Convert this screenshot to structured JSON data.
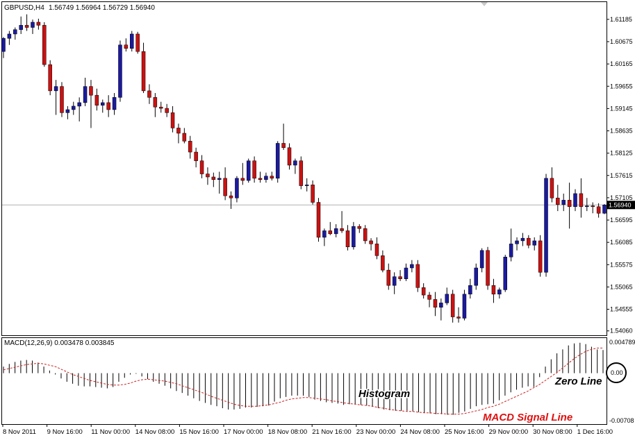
{
  "header": {
    "symbol": "GBPUSD,H4",
    "ohlc": "1.56749 1.56964 1.56729 1.56940"
  },
  "colors": {
    "bull": "#1a1aa0",
    "bear": "#cc1111",
    "wick": "#000000",
    "macd_bar": "#000000",
    "signal": "#cc2222",
    "annotation_red": "#e01010"
  },
  "macd": {
    "title": "MACD(12,26,9) 0.003478 0.003845",
    "ticks": [
      "0.004789",
      "0.00",
      "-0.00708"
    ],
    "annotations": {
      "zero_line": "Zero Line",
      "histogram": "Histogram",
      "signal_line": "MACD Signal Line"
    }
  },
  "chart_data": [
    {
      "type": "candlestick",
      "title": "GBPUSD,H4  1.56749 1.56964 1.56729 1.56940",
      "y_ticks": [
        "1.61185",
        "1.60675",
        "1.60165",
        "1.59655",
        "1.59145",
        "1.58635",
        "1.58125",
        "1.57615",
        "1.57105",
        "1.56595",
        "1.56085",
        "1.55575",
        "1.55065",
        "1.54555",
        "1.54060"
      ],
      "ylim": [
        1.5396,
        1.6158
      ],
      "current_price": "1.56940",
      "x_labels": [
        "8 Nov 2011",
        "9 Nov 16:00",
        "11 Nov 00:00",
        "14 Nov 08:00",
        "15 Nov 16:00",
        "17 Nov 00:00",
        "18 Nov 08:00",
        "21 Nov 16:00",
        "23 Nov 00:00",
        "24 Nov 08:00",
        "25 Nov 16:00",
        "29 Nov 00:00",
        "30 Nov 08:00",
        "1 Dec 16:00"
      ],
      "ohlc": [
        [
          1.6045,
          1.6078,
          1.603,
          1.6075
        ],
        [
          1.6075,
          1.6092,
          1.606,
          1.6085
        ],
        [
          1.6085,
          1.61,
          1.6072,
          1.6095
        ],
        [
          1.6095,
          1.6125,
          1.6085,
          1.6105
        ],
        [
          1.6105,
          1.613,
          1.6092,
          1.61
        ],
        [
          1.61,
          1.6118,
          1.6085,
          1.6112
        ],
        [
          1.6112,
          1.612,
          1.6095,
          1.6105
        ],
        [
          1.6105,
          1.6112,
          1.601,
          1.6015
        ],
        [
          1.6015,
          1.6025,
          1.5945,
          1.5955
        ],
        [
          1.5955,
          1.598,
          1.59,
          1.5965
        ],
        [
          1.5965,
          1.5975,
          1.5895,
          1.5905
        ],
        [
          1.5905,
          1.592,
          1.589,
          1.5912
        ],
        [
          1.5912,
          1.593,
          1.59,
          1.592
        ],
        [
          1.592,
          1.594,
          1.5885,
          1.5928
        ],
        [
          1.5928,
          1.5985,
          1.592,
          1.5965
        ],
        [
          1.5965,
          1.598,
          1.587,
          1.5945
        ],
        [
          1.5945,
          1.596,
          1.591,
          1.5922
        ],
        [
          1.5922,
          1.5935,
          1.5905,
          1.5928
        ],
        [
          1.5928,
          1.5945,
          1.5895,
          1.5912
        ],
        [
          1.5912,
          1.595,
          1.59,
          1.594
        ],
        [
          1.594,
          1.607,
          1.593,
          1.606
        ],
        [
          1.606,
          1.6075,
          1.6045,
          1.6052
        ],
        [
          1.6052,
          1.6092,
          1.6045,
          1.6085
        ],
        [
          1.6085,
          1.609,
          1.604,
          1.6045
        ],
        [
          1.6045,
          1.6065,
          1.595,
          1.5955
        ],
        [
          1.5955,
          1.597,
          1.5925,
          1.594
        ],
        [
          1.594,
          1.595,
          1.5895,
          1.5918
        ],
        [
          1.5918,
          1.593,
          1.5905,
          1.5915
        ],
        [
          1.5915,
          1.5925,
          1.5895,
          1.5905
        ],
        [
          1.5905,
          1.592,
          1.586,
          1.587
        ],
        [
          1.587,
          1.588,
          1.5835,
          1.5858
        ],
        [
          1.5858,
          1.587,
          1.5835,
          1.584
        ],
        [
          1.584,
          1.5852,
          1.58,
          1.5815
        ],
        [
          1.5815,
          1.5825,
          1.578,
          1.5795
        ],
        [
          1.5795,
          1.5808,
          1.5755,
          1.5765
        ],
        [
          1.5765,
          1.578,
          1.574,
          1.5758
        ],
        [
          1.5758,
          1.5768,
          1.5735,
          1.5752
        ],
        [
          1.5752,
          1.577,
          1.572,
          1.5755
        ],
        [
          1.5755,
          1.578,
          1.5705,
          1.5715
        ],
        [
          1.5715,
          1.5725,
          1.5685,
          1.571
        ],
        [
          1.571,
          1.576,
          1.57,
          1.5755
        ],
        [
          1.5755,
          1.579,
          1.574,
          1.575
        ],
        [
          1.575,
          1.58,
          1.5745,
          1.5795
        ],
        [
          1.5795,
          1.5805,
          1.5745,
          1.5755
        ],
        [
          1.5755,
          1.577,
          1.5745,
          1.5752
        ],
        [
          1.5752,
          1.5768,
          1.5745,
          1.576
        ],
        [
          1.576,
          1.577,
          1.575,
          1.5755
        ],
        [
          1.5755,
          1.584,
          1.5745,
          1.5835
        ],
        [
          1.5835,
          1.588,
          1.582,
          1.5825
        ],
        [
          1.5825,
          1.5835,
          1.5775,
          1.5785
        ],
        [
          1.5785,
          1.58,
          1.5765,
          1.5795
        ],
        [
          1.5795,
          1.5805,
          1.573,
          1.5738
        ],
        [
          1.5738,
          1.5755,
          1.5725,
          1.574
        ],
        [
          1.574,
          1.575,
          1.5695,
          1.57
        ],
        [
          1.57,
          1.571,
          1.561,
          1.562
        ],
        [
          1.562,
          1.564,
          1.56,
          1.5635
        ],
        [
          1.5635,
          1.5655,
          1.5625,
          1.5628
        ],
        [
          1.5628,
          1.565,
          1.562,
          1.564
        ],
        [
          1.564,
          1.568,
          1.563,
          1.5635
        ],
        [
          1.5635,
          1.5648,
          1.559,
          1.5598
        ],
        [
          1.5598,
          1.5655,
          1.5592,
          1.5645
        ],
        [
          1.5645,
          1.565,
          1.563,
          1.564
        ],
        [
          1.564,
          1.5648,
          1.5605,
          1.5612
        ],
        [
          1.5612,
          1.5618,
          1.559,
          1.5605
        ],
        [
          1.5605,
          1.562,
          1.557,
          1.5578
        ],
        [
          1.5578,
          1.559,
          1.554,
          1.5545
        ],
        [
          1.5545,
          1.556,
          1.55,
          1.551
        ],
        [
          1.551,
          1.554,
          1.549,
          1.553
        ],
        [
          1.553,
          1.5545,
          1.552,
          1.5525
        ],
        [
          1.5525,
          1.556,
          1.552,
          1.555
        ],
        [
          1.555,
          1.5568,
          1.554,
          1.5558
        ],
        [
          1.5558,
          1.5568,
          1.5495,
          1.5505
        ],
        [
          1.5505,
          1.5515,
          1.548,
          1.5488
        ],
        [
          1.5488,
          1.5495,
          1.546,
          1.5478
        ],
        [
          1.5478,
          1.5495,
          1.544,
          1.546
        ],
        [
          1.546,
          1.548,
          1.543,
          1.547
        ],
        [
          1.547,
          1.5505,
          1.5465,
          1.549
        ],
        [
          1.549,
          1.55,
          1.5425,
          1.5438
        ],
        [
          1.5438,
          1.546,
          1.5425,
          1.5435
        ],
        [
          1.5435,
          1.55,
          1.543,
          1.549
        ],
        [
          1.549,
          1.5525,
          1.548,
          1.551
        ],
        [
          1.551,
          1.556,
          1.55,
          1.555
        ],
        [
          1.555,
          1.5595,
          1.554,
          1.559
        ],
        [
          1.559,
          1.5598,
          1.55,
          1.551
        ],
        [
          1.551,
          1.5525,
          1.547,
          1.549
        ],
        [
          1.549,
          1.5505,
          1.548,
          1.55
        ],
        [
          1.55,
          1.558,
          1.5495,
          1.5575
        ],
        [
          1.5575,
          1.564,
          1.5565,
          1.5605
        ],
        [
          1.5605,
          1.562,
          1.559,
          1.5612
        ],
        [
          1.5612,
          1.563,
          1.56,
          1.5618
        ],
        [
          1.5618,
          1.5625,
          1.5595,
          1.5602
        ],
        [
          1.5602,
          1.562,
          1.559,
          1.5612
        ],
        [
          1.5612,
          1.5625,
          1.553,
          1.554
        ],
        [
          1.554,
          1.5765,
          1.553,
          1.5755
        ],
        [
          1.5755,
          1.578,
          1.57,
          1.571
        ],
        [
          1.571,
          1.574,
          1.568,
          1.5695
        ],
        [
          1.5695,
          1.572,
          1.568,
          1.5705
        ],
        [
          1.5705,
          1.5745,
          1.564,
          1.569
        ],
        [
          1.569,
          1.573,
          1.568,
          1.572
        ],
        [
          1.572,
          1.5755,
          1.5665,
          1.569
        ],
        [
          1.569,
          1.571,
          1.568,
          1.5692
        ],
        [
          1.5692,
          1.57,
          1.5675,
          1.569
        ],
        [
          1.569,
          1.5698,
          1.5665,
          1.5675
        ],
        [
          1.5675,
          1.5696,
          1.5673,
          1.5694
        ]
      ]
    },
    {
      "type": "bar",
      "title": "MACD(12,26,9) 0.003478 0.003845",
      "ylim": [
        -0.00708,
        0.004789
      ],
      "values": [
        0.001,
        0.0014,
        0.0017,
        0.0019,
        0.002,
        0.0019,
        0.0016,
        0.001,
        0.0004,
        -0.0002,
        -0.0008,
        -0.0013,
        -0.0016,
        -0.0019,
        -0.002,
        -0.002,
        -0.0021,
        -0.0022,
        -0.0023,
        -0.0021,
        -0.0013,
        -0.0007,
        -0.0002,
        -0.0001,
        -0.0005,
        -0.0009,
        -0.0013,
        -0.0016,
        -0.0019,
        -0.0023,
        -0.0027,
        -0.003,
        -0.0034,
        -0.0038,
        -0.0042,
        -0.0045,
        -0.0048,
        -0.005,
        -0.0053,
        -0.0055,
        -0.0055,
        -0.0054,
        -0.0052,
        -0.0052,
        -0.0051,
        -0.005,
        -0.0049,
        -0.0043,
        -0.0038,
        -0.0036,
        -0.0034,
        -0.0034,
        -0.0034,
        -0.0036,
        -0.004,
        -0.0042,
        -0.0044,
        -0.0045,
        -0.0046,
        -0.0048,
        -0.0047,
        -0.0047,
        -0.0048,
        -0.0049,
        -0.0051,
        -0.0053,
        -0.0055,
        -0.0056,
        -0.0057,
        -0.0057,
        -0.0057,
        -0.0058,
        -0.0059,
        -0.006,
        -0.0061,
        -0.0062,
        -0.0062,
        -0.0063,
        -0.0063,
        -0.006,
        -0.0058,
        -0.0054,
        -0.005,
        -0.0048,
        -0.0047,
        -0.0046,
        -0.0041,
        -0.0034,
        -0.0029,
        -0.0025,
        -0.0022,
        -0.002,
        -0.0021,
        -0.0006,
        0.001,
        0.0021,
        0.003,
        0.0036,
        0.0042,
        0.0045,
        0.0046,
        0.0044,
        0.004,
        0.0036,
        0.0035
      ],
      "signal": [
        0.0005,
        0.0007,
        0.0009,
        0.0011,
        0.0013,
        0.0014,
        0.0015,
        0.0014,
        0.0012,
        0.001,
        0.0006,
        0.0002,
        -0.0002,
        -0.0005,
        -0.0008,
        -0.0011,
        -0.0013,
        -0.0015,
        -0.0017,
        -0.0018,
        -0.0018,
        -0.0017,
        -0.0015,
        -0.0012,
        -0.001,
        -0.0009,
        -0.001,
        -0.0011,
        -0.0012,
        -0.0014,
        -0.0016,
        -0.0019,
        -0.0022,
        -0.0025,
        -0.0028,
        -0.0031,
        -0.0035,
        -0.0038,
        -0.0041,
        -0.0044,
        -0.0047,
        -0.0049,
        -0.005,
        -0.005,
        -0.005,
        -0.0049,
        -0.0048,
        -0.0046,
        -0.0044,
        -0.0041,
        -0.0039,
        -0.0038,
        -0.0037,
        -0.0037,
        -0.0038,
        -0.0039,
        -0.004,
        -0.0042,
        -0.0043,
        -0.0045,
        -0.0046,
        -0.0047,
        -0.0048,
        -0.0049,
        -0.005,
        -0.0052,
        -0.0053,
        -0.0055,
        -0.0056,
        -0.0057,
        -0.0058,
        -0.0058,
        -0.0059,
        -0.006,
        -0.006,
        -0.0061,
        -0.0061,
        -0.0062,
        -0.0062,
        -0.0062,
        -0.0061,
        -0.0059,
        -0.0057,
        -0.0055,
        -0.0052,
        -0.005,
        -0.0047,
        -0.0043,
        -0.0039,
        -0.0035,
        -0.0031,
        -0.0027,
        -0.0022,
        -0.0017,
        -0.0011,
        -0.0005,
        0.0001,
        0.0008,
        0.0015,
        0.0022,
        0.0028,
        0.0033,
        0.0036,
        0.0038,
        0.0038
      ]
    }
  ]
}
